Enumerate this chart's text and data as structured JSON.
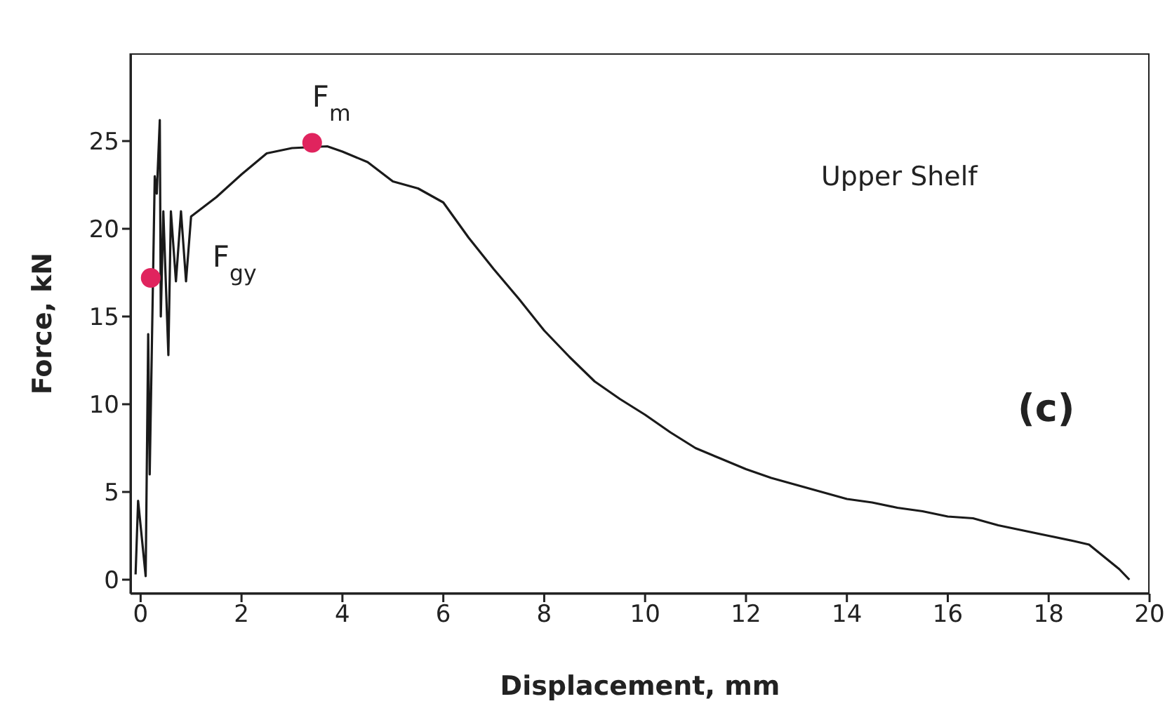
{
  "chart_data": {
    "type": "line",
    "xlabel": "Displacement, mm",
    "ylabel": "Force, kN",
    "xlim": [
      -0.2,
      20
    ],
    "ylim": [
      -0.8,
      30
    ],
    "xticks": [
      0,
      2,
      4,
      6,
      8,
      10,
      12,
      14,
      16,
      18,
      20
    ],
    "yticks": [
      0,
      5,
      10,
      15,
      20,
      25
    ],
    "marker": "none",
    "line_style": "solid",
    "annotations": [
      "Upper Shelf",
      "(c)",
      {
        "text": "F$_{gy}$",
        "x": 0.2,
        "y": 17.2
      },
      {
        "text": "F$_{m}$",
        "x": 3.4,
        "y": 24.9
      }
    ],
    "series": [
      {
        "color": "#1a1a1a",
        "x": [
          -0.1,
          -0.05,
          0.1,
          0.15,
          0.18,
          0.28,
          0.32,
          0.38,
          0.4,
          0.45,
          0.55,
          0.6,
          0.7,
          0.8,
          0.9,
          1.0,
          1.5,
          2.0,
          2.5,
          3.0,
          3.7,
          4.0,
          4.5,
          5.0,
          5.5,
          6.0,
          6.5,
          7.0,
          7.5,
          8.0,
          8.5,
          9.0,
          9.5,
          10,
          10.5,
          11,
          11.5,
          12,
          12.5,
          13,
          13.5,
          14,
          14.5,
          15,
          15.5,
          16,
          16.5,
          17,
          17.5,
          18,
          18.5,
          18.8,
          19.1,
          19.4,
          19.6
        ],
        "values": [
          0.3,
          4.5,
          0.2,
          14,
          6,
          23,
          22,
          26.2,
          15,
          21,
          12.8,
          21,
          17,
          21,
          17,
          20.7,
          21.8,
          23.1,
          24.3,
          24.6,
          24.7,
          24.4,
          23.8,
          22.7,
          22.3,
          21.5,
          19.5,
          17.7,
          16,
          14.2,
          12.7,
          11.3,
          10.3,
          9.4,
          8.4,
          7.5,
          6.9,
          6.3,
          5.8,
          5.4,
          5.0,
          4.6,
          4.4,
          4.1,
          3.9,
          3.6,
          3.5,
          3.1,
          2.8,
          2.5,
          2.2,
          2.0,
          1.3,
          0.6,
          0
        ]
      },
      {
        "type": "scatter",
        "color": "#e0245e",
        "x": [
          0.2,
          3.4
        ],
        "values": [
          17.2,
          24.9
        ],
        "marker": "circle"
      }
    ]
  }
}
